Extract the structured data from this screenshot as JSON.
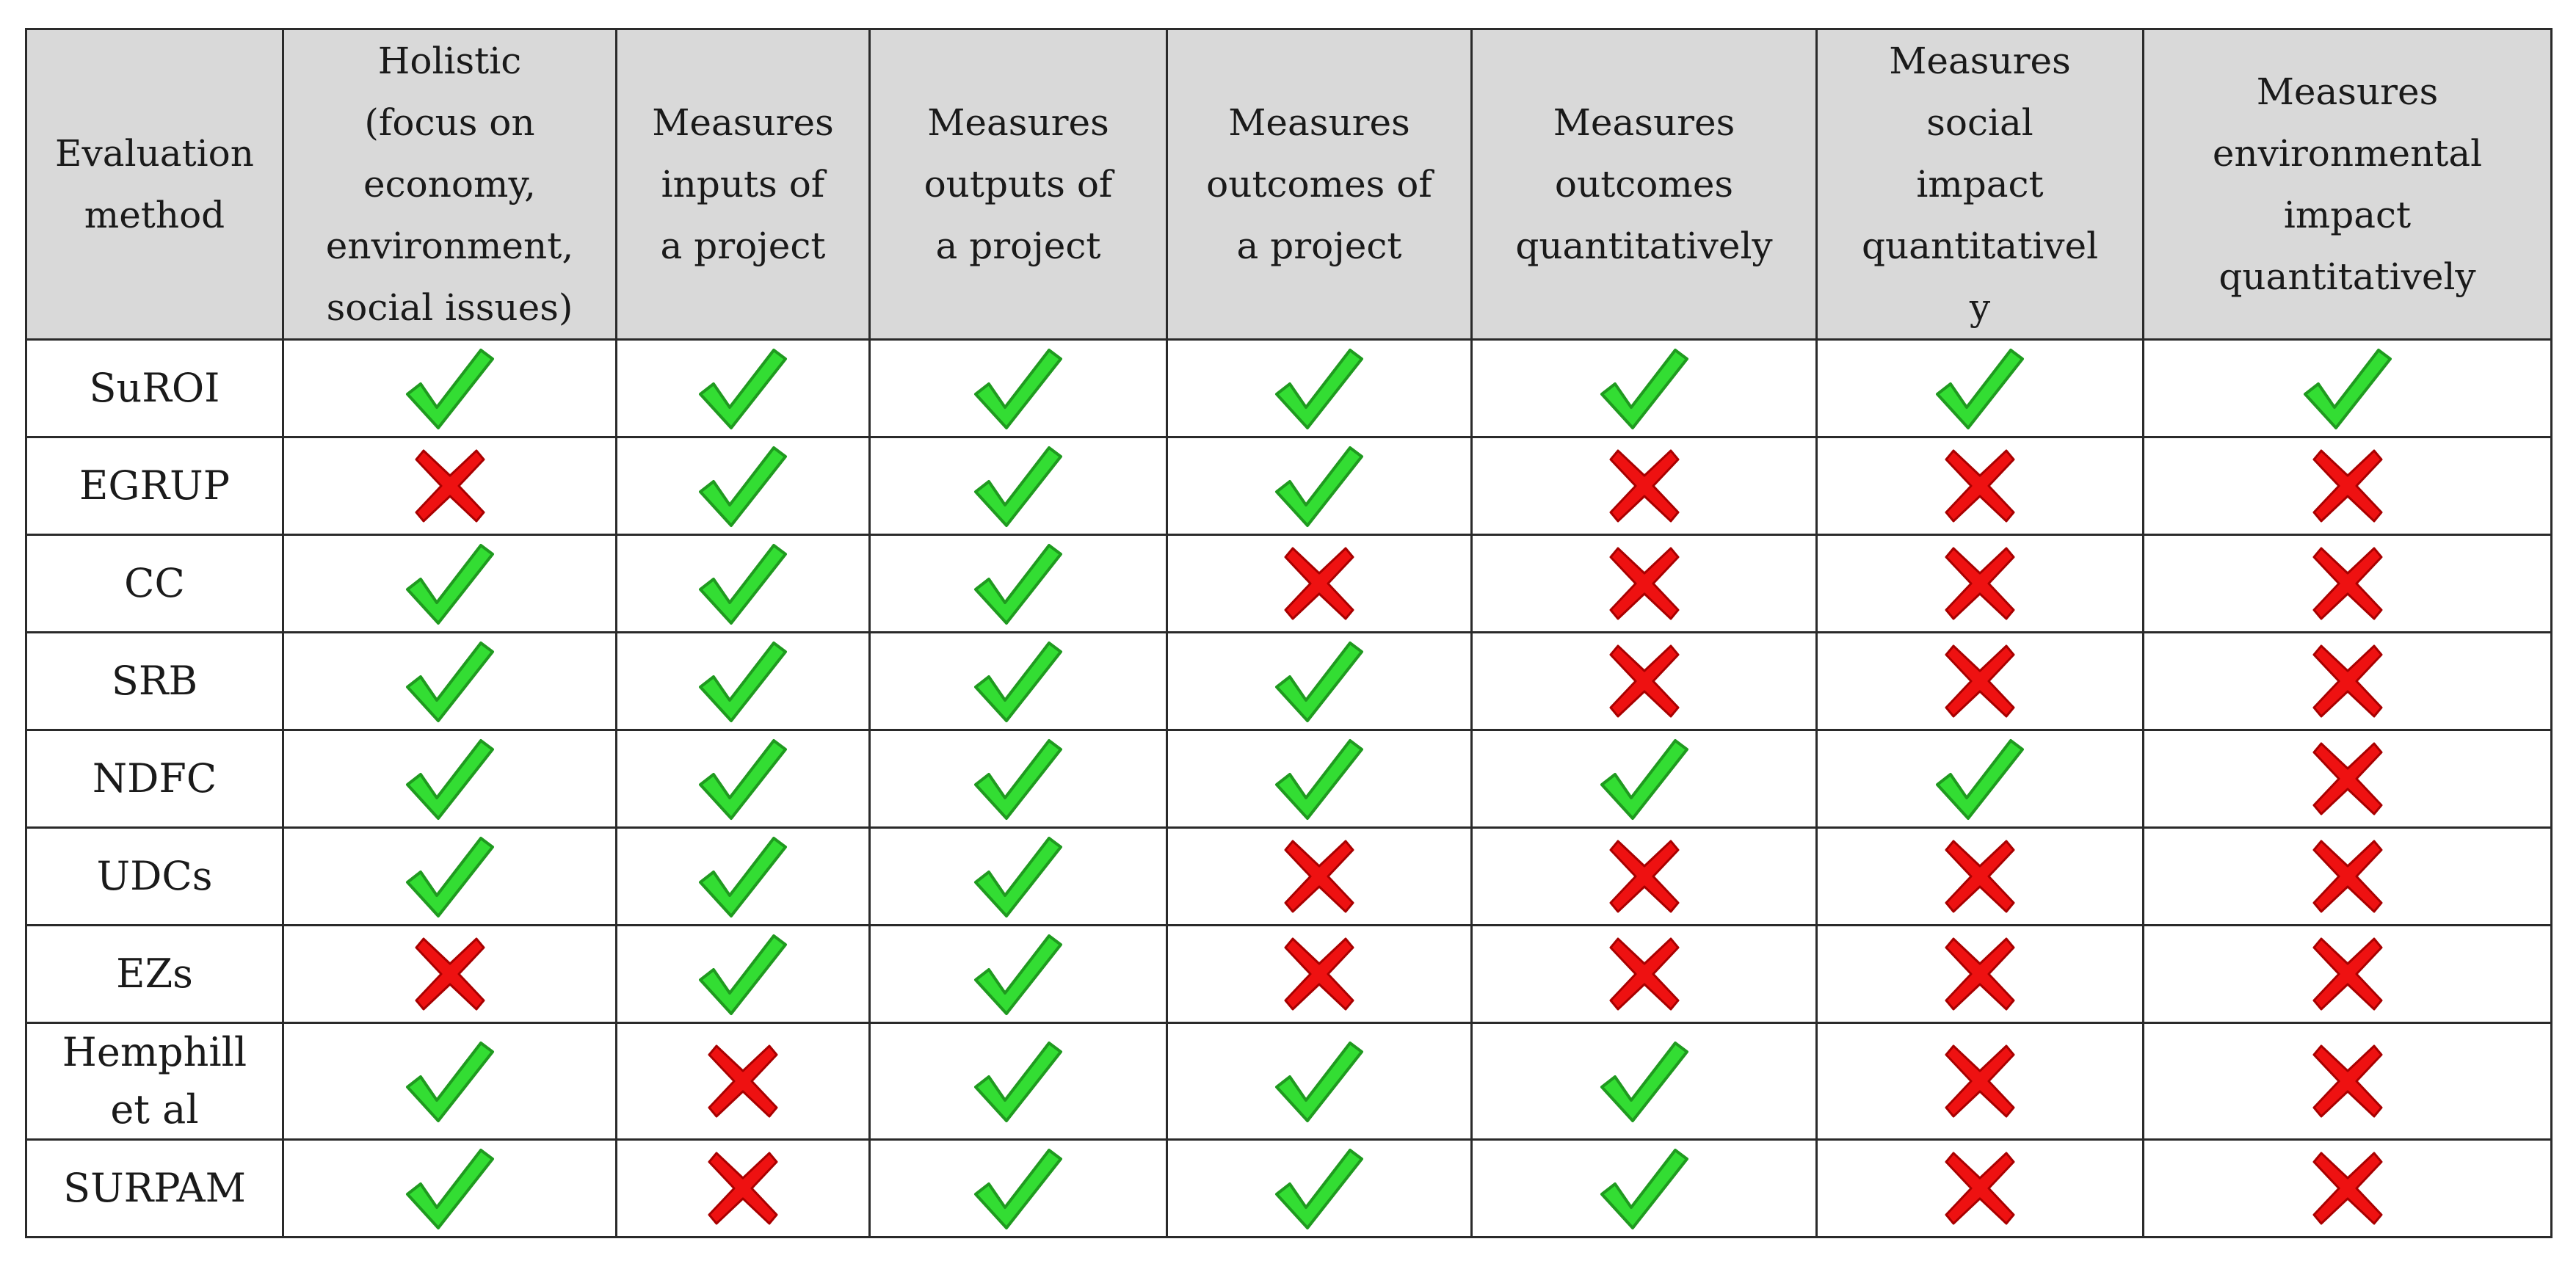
{
  "table": {
    "headers": [
      "Evaluation\nmethod",
      "Holistic\n(focus on\neconomy,\nenvironment,\nsocial issues)",
      "Measures\ninputs of\na project",
      "Measures\noutputs of\na project",
      "Measures\noutcomes of\na project",
      "Measures\noutcomes\nquantitatively",
      "Measures\nsocial\nimpact\nquantitativel\ny",
      "Measures\nenvironmental\nimpact\nquantitatively"
    ],
    "rows": [
      {
        "method": "SuROI",
        "marks": [
          "check",
          "check",
          "check",
          "check",
          "check",
          "check",
          "check"
        ]
      },
      {
        "method": "EGRUP",
        "marks": [
          "cross",
          "check",
          "check",
          "check",
          "cross",
          "cross",
          "cross"
        ]
      },
      {
        "method": "CC",
        "marks": [
          "check",
          "check",
          "check",
          "cross",
          "cross",
          "cross",
          "cross"
        ]
      },
      {
        "method": "SRB",
        "marks": [
          "check",
          "check",
          "check",
          "check",
          "cross",
          "cross",
          "cross"
        ]
      },
      {
        "method": "NDFC",
        "marks": [
          "check",
          "check",
          "check",
          "check",
          "check",
          "check",
          "cross"
        ]
      },
      {
        "method": "UDCs",
        "marks": [
          "check",
          "check",
          "check",
          "cross",
          "cross",
          "cross",
          "cross"
        ]
      },
      {
        "method": "EZs",
        "marks": [
          "cross",
          "check",
          "check",
          "cross",
          "cross",
          "cross",
          "cross"
        ]
      },
      {
        "method": "Hemphill\net al",
        "marks": [
          "check",
          "cross",
          "check",
          "check",
          "check",
          "cross",
          "cross"
        ]
      },
      {
        "method": "SURPAM",
        "marks": [
          "check",
          "cross",
          "check",
          "check",
          "check",
          "cross",
          "cross"
        ]
      }
    ]
  },
  "icons": {
    "check": "check-icon",
    "cross": "cross-icon"
  },
  "colors": {
    "check_fill": "#33dd33",
    "check_stroke": "#1f9a1f",
    "cross_fill": "#ee1111",
    "cross_stroke": "#a80000",
    "header_background": "#d9d9d9",
    "border": "#2a2a2a"
  }
}
